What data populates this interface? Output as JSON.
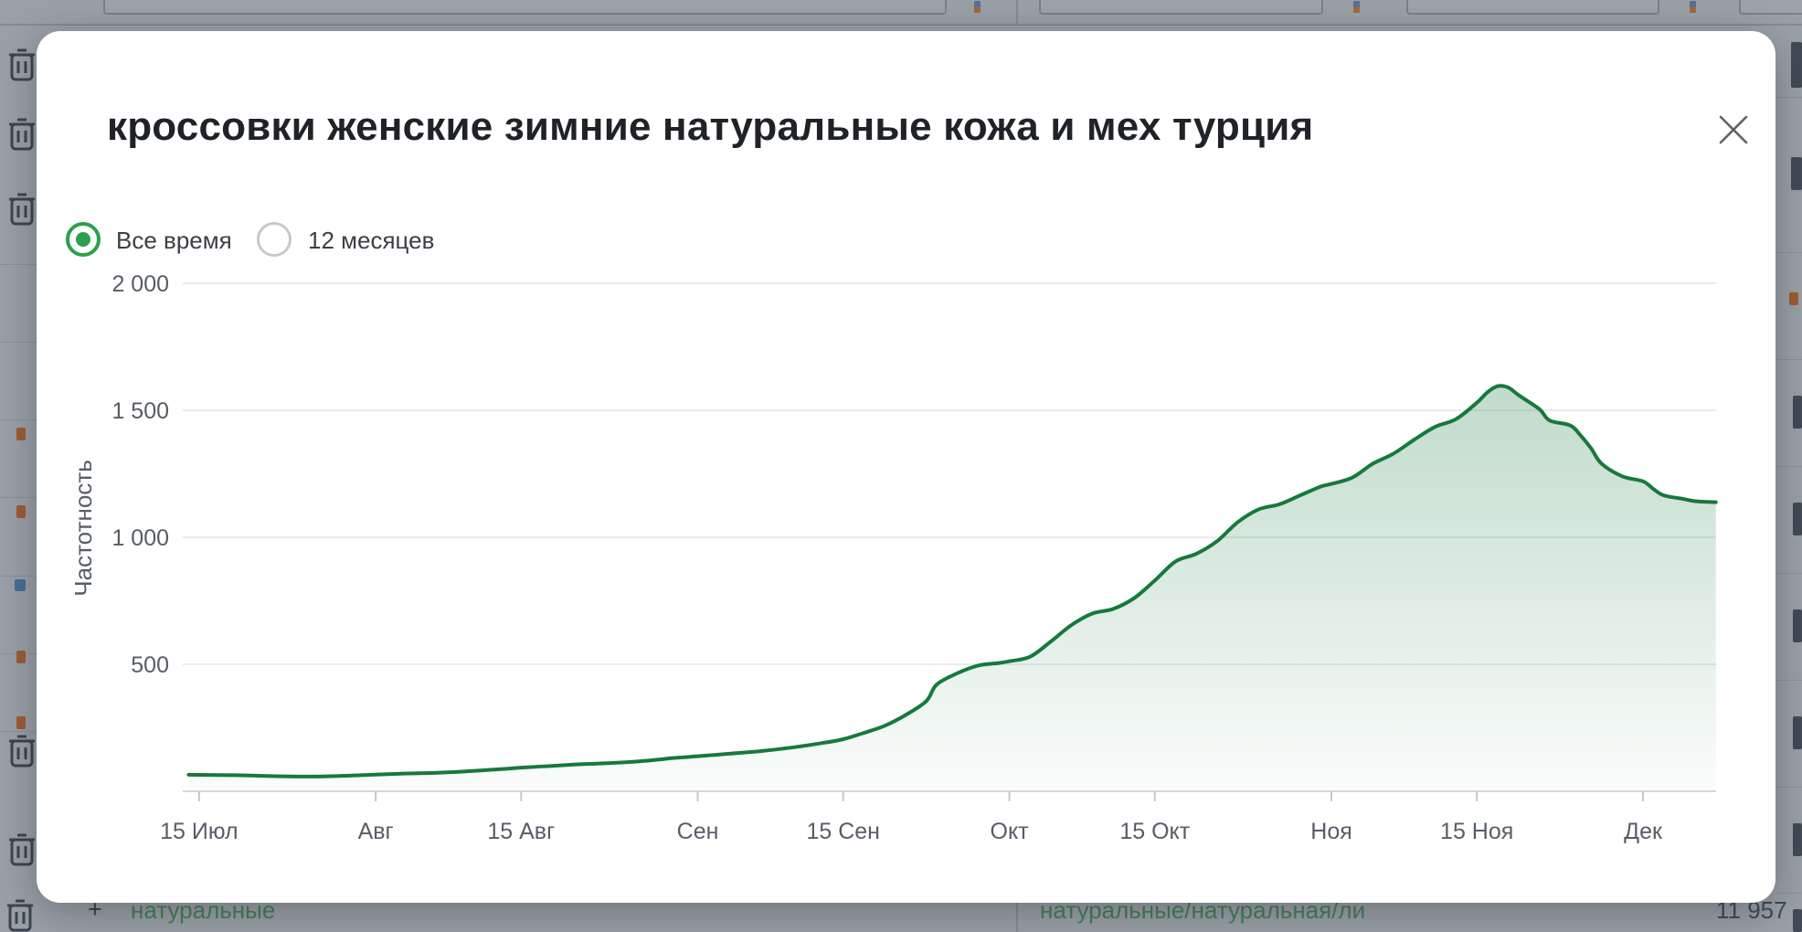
{
  "modal": {
    "title": "кроссовки женские зимние натуральные кожа и мех турция",
    "close_label": "Закрыть",
    "period_options": [
      {
        "label": "Все время",
        "selected": true
      },
      {
        "label": "12 месяцев",
        "selected": false
      }
    ]
  },
  "chart_data": {
    "type": "area",
    "series_name": "Частотность",
    "ylabel": "Частотность",
    "xlabel": "",
    "ylim": [
      0,
      2000
    ],
    "grid": true,
    "legend": "none",
    "line_color": "#17793c",
    "fill_color": "rgba(23,121,60,0.26)",
    "x_unit": "days since 14 July",
    "y_ticks": [
      {
        "label": "500",
        "value": 500
      },
      {
        "label": "1 000",
        "value": 1000
      },
      {
        "label": "1 500",
        "value": 1500
      },
      {
        "label": "2 000",
        "value": 2000
      }
    ],
    "x_ticks": [
      {
        "label": "15 Июл",
        "day": 1
      },
      {
        "label": "Авг",
        "day": 18
      },
      {
        "label": "15 Авг",
        "day": 32
      },
      {
        "label": "Сен",
        "day": 49
      },
      {
        "label": "15 Сен",
        "day": 63
      },
      {
        "label": "Окт",
        "day": 79
      },
      {
        "label": "15 Окт",
        "day": 93
      },
      {
        "label": "Ноя",
        "day": 110
      },
      {
        "label": "15 Ноя",
        "day": 124
      },
      {
        "label": "Дек",
        "day": 140
      }
    ],
    "points": [
      [
        0,
        65
      ],
      [
        3,
        64
      ],
      [
        6,
        62
      ],
      [
        9,
        59
      ],
      [
        12,
        58
      ],
      [
        15,
        61
      ],
      [
        18,
        66
      ],
      [
        21,
        70
      ],
      [
        24,
        73
      ],
      [
        27,
        79
      ],
      [
        30,
        87
      ],
      [
        32,
        93
      ],
      [
        35,
        100
      ],
      [
        38,
        107
      ],
      [
        41,
        112
      ],
      [
        44,
        120
      ],
      [
        47,
        132
      ],
      [
        49,
        138
      ],
      [
        52,
        148
      ],
      [
        55,
        158
      ],
      [
        58,
        172
      ],
      [
        61,
        190
      ],
      [
        63,
        205
      ],
      [
        65,
        230
      ],
      [
        67,
        258
      ],
      [
        69,
        300
      ],
      [
        71,
        355
      ],
      [
        72,
        420
      ],
      [
        74,
        465
      ],
      [
        76,
        495
      ],
      [
        78,
        505
      ],
      [
        79,
        512
      ],
      [
        81,
        530
      ],
      [
        83,
        590
      ],
      [
        85,
        655
      ],
      [
        87,
        700
      ],
      [
        89,
        718
      ],
      [
        91,
        760
      ],
      [
        93,
        830
      ],
      [
        95,
        905
      ],
      [
        97,
        935
      ],
      [
        99,
        985
      ],
      [
        101,
        1060
      ],
      [
        103,
        1110
      ],
      [
        105,
        1130
      ],
      [
        107,
        1165
      ],
      [
        109,
        1200
      ],
      [
        110,
        1210
      ],
      [
        112,
        1235
      ],
      [
        114,
        1290
      ],
      [
        116,
        1330
      ],
      [
        118,
        1385
      ],
      [
        120,
        1435
      ],
      [
        122,
        1465
      ],
      [
        124,
        1530
      ],
      [
        125,
        1570
      ],
      [
        126,
        1595
      ],
      [
        127,
        1590
      ],
      [
        128,
        1560
      ],
      [
        130,
        1505
      ],
      [
        131,
        1460
      ],
      [
        133,
        1440
      ],
      [
        134,
        1400
      ],
      [
        135,
        1350
      ],
      [
        136,
        1290
      ],
      [
        138,
        1240
      ],
      [
        140,
        1220
      ],
      [
        141,
        1190
      ],
      [
        142,
        1165
      ],
      [
        144,
        1150
      ],
      [
        145,
        1142
      ],
      [
        147,
        1138
      ]
    ]
  },
  "background": {
    "bottom_row": {
      "expander": "+",
      "left_phrase": "натуральные",
      "right_phrase": "натуральные/натуральная/ли",
      "count": "11 957"
    }
  }
}
